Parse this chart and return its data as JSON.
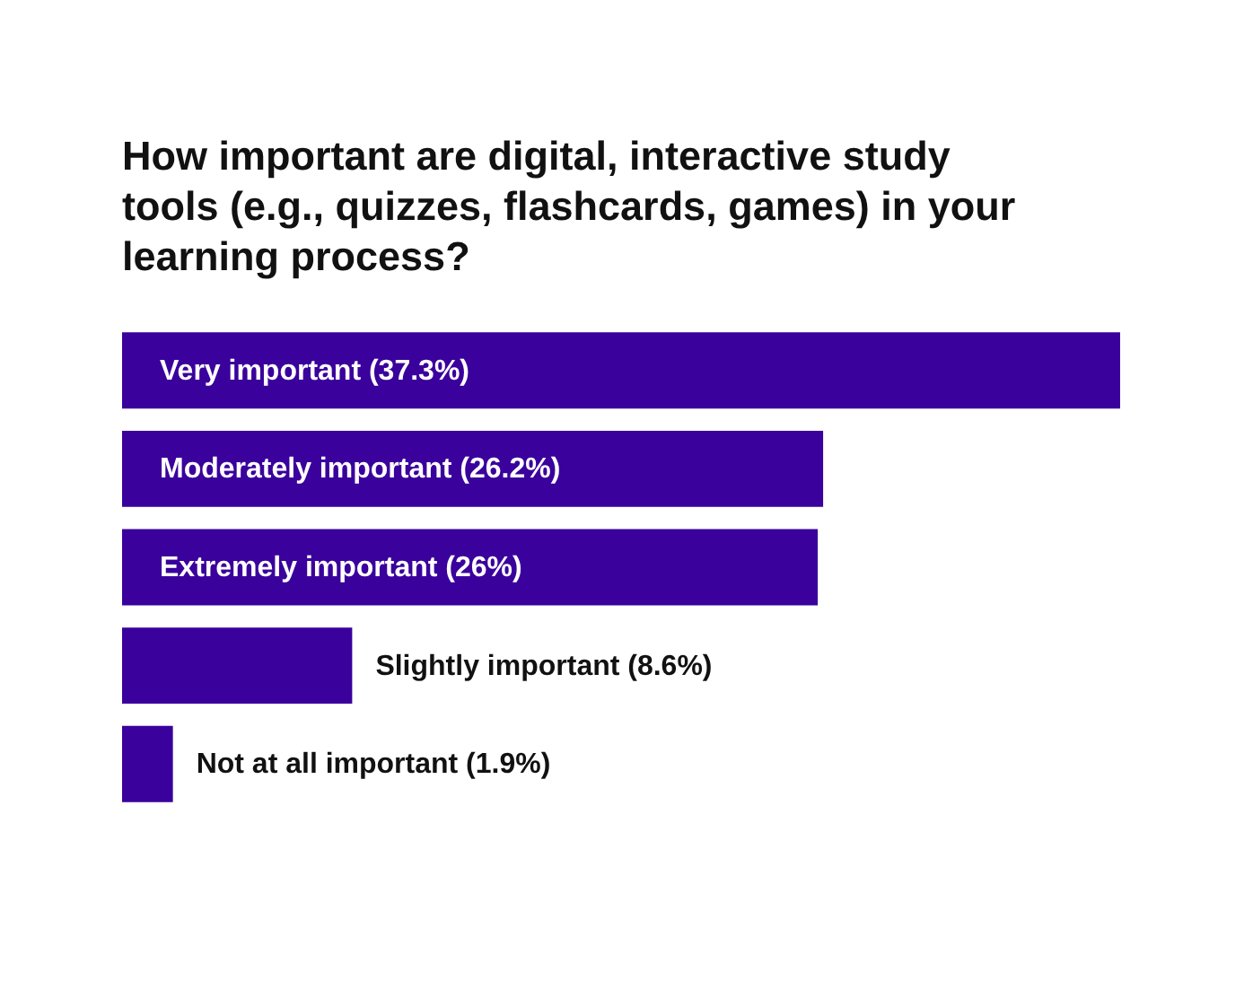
{
  "chart_data": {
    "type": "bar",
    "orientation": "horizontal",
    "title": "How important are digital, interactive study tools (e.g., quizzes, flashcards, games) in your learning process?",
    "categories": [
      null,
      null,
      null,
      null,
      null
    ],
    "values": [
      37.3,
      26.2,
      26,
      8.6,
      1.9
    ],
    "value_labels": [
      "Very important (37.3%)",
      "Moderately important (26.2%)",
      "Extremely important (26%)",
      "Slightly important (8.6%)",
      "Not at all important (1.9%)"
    ],
    "color": "#3a019c"
  }
}
